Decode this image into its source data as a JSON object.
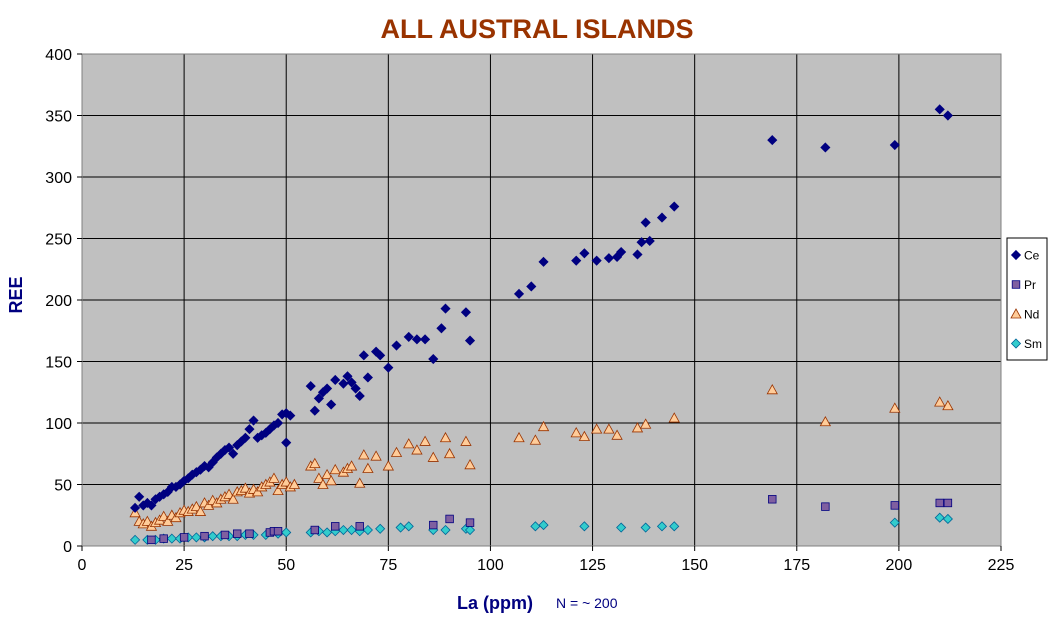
{
  "chart_data": {
    "type": "scatter",
    "title": "ALL AUSTRAL ISLANDS",
    "xlabel": "La (ppm)",
    "ylabel": "REE",
    "annotation": "N = ~ 200",
    "xlim": [
      0,
      225
    ],
    "ylim": [
      0,
      400
    ],
    "xticks": [
      "0",
      "25",
      "50",
      "75",
      "100",
      "125",
      "150",
      "175",
      "200",
      "225"
    ],
    "yticks": [
      "0",
      "50",
      "100",
      "150",
      "200",
      "250",
      "300",
      "350",
      "400"
    ],
    "grid": true,
    "legend_position": "right",
    "series": [
      {
        "name": "Ce",
        "marker": "diamond",
        "color": "#000080",
        "points": [
          [
            13,
            31
          ],
          [
            14,
            40
          ],
          [
            15,
            33
          ],
          [
            16,
            35
          ],
          [
            17,
            33
          ],
          [
            18,
            38
          ],
          [
            19,
            40
          ],
          [
            20,
            42
          ],
          [
            21,
            44
          ],
          [
            22,
            48
          ],
          [
            23,
            48
          ],
          [
            24,
            50
          ],
          [
            25,
            53
          ],
          [
            26,
            55
          ],
          [
            27,
            58
          ],
          [
            28,
            60
          ],
          [
            29,
            62
          ],
          [
            30,
            65
          ],
          [
            31,
            64
          ],
          [
            32,
            68
          ],
          [
            33,
            72
          ],
          [
            34,
            75
          ],
          [
            35,
            78
          ],
          [
            36,
            80
          ],
          [
            37,
            75
          ],
          [
            38,
            82
          ],
          [
            39,
            85
          ],
          [
            40,
            88
          ],
          [
            41,
            95
          ],
          [
            42,
            102
          ],
          [
            43,
            88
          ],
          [
            44,
            90
          ],
          [
            45,
            92
          ],
          [
            46,
            95
          ],
          [
            47,
            98
          ],
          [
            48,
            100
          ],
          [
            49,
            107
          ],
          [
            50,
            108
          ],
          [
            50,
            84
          ],
          [
            51,
            106
          ],
          [
            56,
            130
          ],
          [
            57,
            110
          ],
          [
            58,
            120
          ],
          [
            59,
            125
          ],
          [
            60,
            128
          ],
          [
            61,
            115
          ],
          [
            62,
            135
          ],
          [
            64,
            132
          ],
          [
            65,
            138
          ],
          [
            66,
            133
          ],
          [
            67,
            128
          ],
          [
            68,
            122
          ],
          [
            69,
            155
          ],
          [
            70,
            137
          ],
          [
            72,
            158
          ],
          [
            73,
            155
          ],
          [
            75,
            145
          ],
          [
            77,
            163
          ],
          [
            80,
            170
          ],
          [
            82,
            168
          ],
          [
            84,
            168
          ],
          [
            86,
            152
          ],
          [
            88,
            177
          ],
          [
            89,
            193
          ],
          [
            94,
            190
          ],
          [
            95,
            167
          ],
          [
            107,
            205
          ],
          [
            110,
            211
          ],
          [
            113,
            231
          ],
          [
            121,
            232
          ],
          [
            123,
            238
          ],
          [
            126,
            232
          ],
          [
            129,
            234
          ],
          [
            131,
            235
          ],
          [
            132,
            239
          ],
          [
            136,
            237
          ],
          [
            137,
            247
          ],
          [
            138,
            263
          ],
          [
            139,
            248
          ],
          [
            142,
            267
          ],
          [
            145,
            276
          ],
          [
            169,
            330
          ],
          [
            182,
            324
          ],
          [
            199,
            326
          ],
          [
            210,
            355
          ],
          [
            212,
            350
          ]
        ]
      },
      {
        "name": "Pr",
        "marker": "square",
        "color": "#7F5FA0",
        "points": [
          [
            17,
            5
          ],
          [
            20,
            6
          ],
          [
            25,
            7
          ],
          [
            30,
            8
          ],
          [
            35,
            9
          ],
          [
            38,
            10
          ],
          [
            41,
            10
          ],
          [
            46,
            11
          ],
          [
            47,
            12
          ],
          [
            48,
            12
          ],
          [
            57,
            13
          ],
          [
            62,
            16
          ],
          [
            68,
            16
          ],
          [
            86,
            17
          ],
          [
            90,
            22
          ],
          [
            95,
            19
          ],
          [
            169,
            38
          ],
          [
            182,
            32
          ],
          [
            199,
            33
          ],
          [
            210,
            35
          ],
          [
            212,
            35
          ]
        ]
      },
      {
        "name": "Nd",
        "marker": "triangle",
        "color": "#FFCC99",
        "stroke": "#993300",
        "points": [
          [
            13,
            27
          ],
          [
            14,
            20
          ],
          [
            15,
            18
          ],
          [
            16,
            20
          ],
          [
            17,
            16
          ],
          [
            18,
            19
          ],
          [
            19,
            21
          ],
          [
            20,
            24
          ],
          [
            21,
            20
          ],
          [
            22,
            25
          ],
          [
            23,
            23
          ],
          [
            24,
            27
          ],
          [
            25,
            29
          ],
          [
            26,
            28
          ],
          [
            27,
            30
          ],
          [
            28,
            32
          ],
          [
            29,
            28
          ],
          [
            30,
            35
          ],
          [
            31,
            33
          ],
          [
            32,
            37
          ],
          [
            33,
            35
          ],
          [
            34,
            38
          ],
          [
            35,
            40
          ],
          [
            36,
            42
          ],
          [
            37,
            38
          ],
          [
            38,
            44
          ],
          [
            39,
            45
          ],
          [
            40,
            47
          ],
          [
            41,
            43
          ],
          [
            42,
            46
          ],
          [
            43,
            44
          ],
          [
            44,
            48
          ],
          [
            45,
            50
          ],
          [
            46,
            52
          ],
          [
            47,
            55
          ],
          [
            48,
            45
          ],
          [
            49,
            50
          ],
          [
            50,
            52
          ],
          [
            51,
            48
          ],
          [
            52,
            50
          ],
          [
            56,
            65
          ],
          [
            57,
            67
          ],
          [
            58,
            55
          ],
          [
            59,
            50
          ],
          [
            60,
            58
          ],
          [
            61,
            53
          ],
          [
            62,
            62
          ],
          [
            64,
            60
          ],
          [
            65,
            63
          ],
          [
            66,
            65
          ],
          [
            68,
            51
          ],
          [
            69,
            74
          ],
          [
            70,
            63
          ],
          [
            72,
            73
          ],
          [
            75,
            65
          ],
          [
            77,
            76
          ],
          [
            80,
            83
          ],
          [
            82,
            78
          ],
          [
            84,
            85
          ],
          [
            86,
            72
          ],
          [
            89,
            88
          ],
          [
            90,
            75
          ],
          [
            94,
            85
          ],
          [
            95,
            66
          ],
          [
            107,
            88
          ],
          [
            111,
            86
          ],
          [
            113,
            97
          ],
          [
            121,
            92
          ],
          [
            123,
            89
          ],
          [
            126,
            95
          ],
          [
            129,
            95
          ],
          [
            131,
            90
          ],
          [
            136,
            96
          ],
          [
            138,
            99
          ],
          [
            145,
            104
          ],
          [
            169,
            127
          ],
          [
            182,
            101
          ],
          [
            199,
            112
          ],
          [
            210,
            117
          ],
          [
            212,
            114
          ]
        ]
      },
      {
        "name": "Sm",
        "marker": "diamond",
        "color": "#33CCCC",
        "points": [
          [
            13,
            5
          ],
          [
            16,
            5
          ],
          [
            18,
            5
          ],
          [
            20,
            6
          ],
          [
            22,
            6
          ],
          [
            24,
            6
          ],
          [
            26,
            7
          ],
          [
            28,
            7
          ],
          [
            30,
            7
          ],
          [
            32,
            8
          ],
          [
            34,
            8
          ],
          [
            36,
            8
          ],
          [
            38,
            8
          ],
          [
            40,
            9
          ],
          [
            42,
            9
          ],
          [
            45,
            9
          ],
          [
            48,
            10
          ],
          [
            50,
            11
          ],
          [
            56,
            11
          ],
          [
            58,
            12
          ],
          [
            60,
            11
          ],
          [
            62,
            12
          ],
          [
            64,
            13
          ],
          [
            66,
            13
          ],
          [
            68,
            12
          ],
          [
            70,
            13
          ],
          [
            73,
            14
          ],
          [
            78,
            15
          ],
          [
            80,
            16
          ],
          [
            86,
            13
          ],
          [
            89,
            13
          ],
          [
            94,
            14
          ],
          [
            95,
            13
          ],
          [
            111,
            16
          ],
          [
            113,
            17
          ],
          [
            123,
            16
          ],
          [
            132,
            15
          ],
          [
            138,
            15
          ],
          [
            142,
            16
          ],
          [
            145,
            16
          ],
          [
            199,
            19
          ],
          [
            210,
            23
          ],
          [
            212,
            22
          ]
        ]
      }
    ]
  }
}
